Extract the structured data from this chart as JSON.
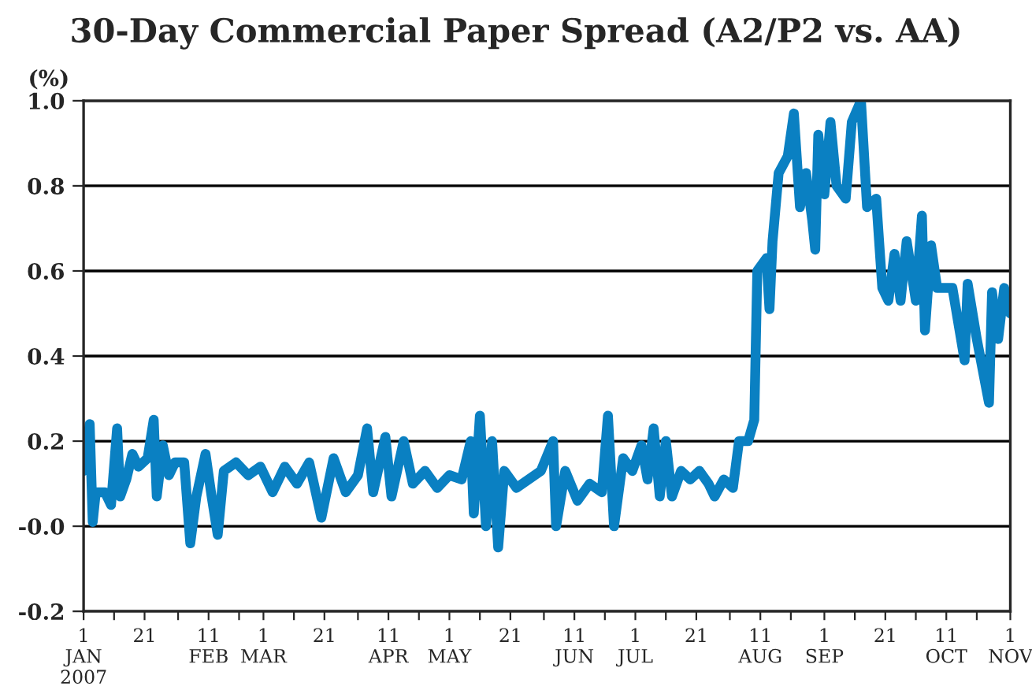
{
  "chart_data": {
    "type": "line",
    "title": "30-Day Commercial Paper Spread (A2/P2 vs. AA)",
    "ylabel": "(%)",
    "x": [
      "2007-01-01",
      "2007-01-03",
      "2007-01-04",
      "2007-01-05",
      "2007-01-08",
      "2007-01-10",
      "2007-01-12",
      "2007-01-13",
      "2007-01-15",
      "2007-01-17",
      "2007-01-19",
      "2007-01-22",
      "2007-01-24",
      "2007-01-25",
      "2007-01-27",
      "2007-01-29",
      "2007-01-31",
      "2007-02-03",
      "2007-02-05",
      "2007-02-07",
      "2007-02-10",
      "2007-02-12",
      "2007-02-14",
      "2007-02-16",
      "2007-02-20",
      "2007-02-24",
      "2007-02-28",
      "2007-03-04",
      "2007-03-08",
      "2007-03-12",
      "2007-03-16",
      "2007-03-20",
      "2007-03-24",
      "2007-03-28",
      "2007-04-01",
      "2007-04-04",
      "2007-04-06",
      "2007-04-10",
      "2007-04-12",
      "2007-04-16",
      "2007-04-19",
      "2007-04-23",
      "2007-04-27",
      "2007-05-01",
      "2007-05-05",
      "2007-05-08",
      "2007-05-09",
      "2007-05-11",
      "2007-05-13",
      "2007-05-15",
      "2007-05-17",
      "2007-05-19",
      "2007-05-23",
      "2007-05-27",
      "2007-05-31",
      "2007-06-04",
      "2007-06-05",
      "2007-06-08",
      "2007-06-12",
      "2007-06-16",
      "2007-06-20",
      "2007-06-22",
      "2007-06-24",
      "2007-06-27",
      "2007-06-30",
      "2007-07-03",
      "2007-07-05",
      "2007-07-07",
      "2007-07-09",
      "2007-07-11",
      "2007-07-13",
      "2007-07-16",
      "2007-07-19",
      "2007-07-22",
      "2007-07-25",
      "2007-07-27",
      "2007-07-30",
      "2007-08-02",
      "2007-08-04",
      "2007-08-07",
      "2007-08-09",
      "2007-08-10",
      "2007-08-13",
      "2007-08-14",
      "2007-08-15",
      "2007-08-17",
      "2007-08-20",
      "2007-08-22",
      "2007-08-24",
      "2007-08-26",
      "2007-08-28",
      "2007-08-29",
      "2007-08-30",
      "2007-09-01",
      "2007-09-03",
      "2007-09-05",
      "2007-09-08",
      "2007-09-10",
      "2007-09-13",
      "2007-09-15",
      "2007-09-18",
      "2007-09-20",
      "2007-09-22",
      "2007-09-24",
      "2007-09-26",
      "2007-09-28",
      "2007-10-01",
      "2007-10-03",
      "2007-10-04",
      "2007-10-06",
      "2007-10-08",
      "2007-10-13",
      "2007-10-17",
      "2007-10-18",
      "2007-10-21",
      "2007-10-25",
      "2007-10-26",
      "2007-10-28",
      "2007-10-30",
      "2007-11-01"
    ],
    "series": [
      {
        "color": "#0a80c2",
        "values": [
          0.13,
          0.24,
          0.01,
          0.08,
          0.08,
          0.05,
          0.23,
          0.07,
          0.11,
          0.17,
          0.14,
          0.16,
          0.25,
          0.07,
          0.19,
          0.12,
          0.15,
          0.15,
          -0.04,
          0.07,
          0.17,
          0.07,
          -0.02,
          0.13,
          0.15,
          0.12,
          0.14,
          0.08,
          0.14,
          0.1,
          0.15,
          0.02,
          0.16,
          0.08,
          0.12,
          0.23,
          0.08,
          0.21,
          0.07,
          0.2,
          0.1,
          0.13,
          0.09,
          0.12,
          0.11,
          0.2,
          0.03,
          0.26,
          0.0,
          0.2,
          -0.05,
          0.13,
          0.09,
          0.11,
          0.13,
          0.2,
          0.0,
          0.13,
          0.06,
          0.1,
          0.08,
          0.26,
          0.0,
          0.16,
          0.13,
          0.19,
          0.11,
          0.23,
          0.07,
          0.2,
          0.07,
          0.13,
          0.11,
          0.13,
          0.1,
          0.07,
          0.11,
          0.09,
          0.2,
          0.2,
          0.25,
          0.6,
          0.63,
          0.51,
          0.67,
          0.83,
          0.87,
          0.97,
          0.75,
          0.83,
          0.72,
          0.65,
          0.92,
          0.78,
          0.95,
          0.8,
          0.77,
          0.95,
          1.0,
          0.75,
          0.77,
          0.56,
          0.53,
          0.64,
          0.53,
          0.67,
          0.53,
          0.73,
          0.46,
          0.66,
          0.56,
          0.56,
          0.39,
          0.57,
          0.44,
          0.29,
          0.55,
          0.44,
          0.56,
          0.5
        ]
      }
    ],
    "xlim": [
      "2007-01-01",
      "2007-11-01"
    ],
    "xticks": [
      {
        "value": "2007-01-01",
        "label": "1\nJAN\n2007"
      },
      {
        "value": "2007-01-11",
        "label": null
      },
      {
        "value": "2007-01-21",
        "label": "21"
      },
      {
        "value": "2007-02-01",
        "label": null
      },
      {
        "value": "2007-02-11",
        "label": "11\nFEB"
      },
      {
        "value": "2007-02-21",
        "label": null
      },
      {
        "value": "2007-03-01",
        "label": "1\nMAR"
      },
      {
        "value": "2007-03-11",
        "label": null
      },
      {
        "value": "2007-03-21",
        "label": "21"
      },
      {
        "value": "2007-04-01",
        "label": null
      },
      {
        "value": "2007-04-11",
        "label": "11\nAPR"
      },
      {
        "value": "2007-04-21",
        "label": null
      },
      {
        "value": "2007-05-01",
        "label": "1\nMAY"
      },
      {
        "value": "2007-05-11",
        "label": null
      },
      {
        "value": "2007-05-21",
        "label": "21"
      },
      {
        "value": "2007-06-01",
        "label": null
      },
      {
        "value": "2007-06-11",
        "label": "11\nJUN"
      },
      {
        "value": "2007-06-21",
        "label": null
      },
      {
        "value": "2007-07-01",
        "label": "1\nJUL"
      },
      {
        "value": "2007-07-11",
        "label": null
      },
      {
        "value": "2007-07-21",
        "label": "21"
      },
      {
        "value": "2007-08-01",
        "label": null
      },
      {
        "value": "2007-08-11",
        "label": "11\nAUG"
      },
      {
        "value": "2007-08-21",
        "label": null
      },
      {
        "value": "2007-09-01",
        "label": "1\nSEP"
      },
      {
        "value": "2007-09-11",
        "label": null
      },
      {
        "value": "2007-09-21",
        "label": "21"
      },
      {
        "value": "2007-10-01",
        "label": null
      },
      {
        "value": "2007-10-11",
        "label": "11\nOCT"
      },
      {
        "value": "2007-10-21",
        "label": null
      },
      {
        "value": "2007-11-01",
        "label": "1\nNOV"
      }
    ],
    "ylim": [
      -0.2,
      1.0
    ],
    "yticks": [
      {
        "value": -0.2,
        "label": "-0.2"
      },
      {
        "value": 0,
        "label": "-0.0"
      },
      0.2,
      0.4,
      0.6,
      0.8,
      {
        "value": 1.0,
        "label": "1.0"
      }
    ],
    "grid": "y",
    "legend": false,
    "marker": "none",
    "line_style": "solid"
  }
}
